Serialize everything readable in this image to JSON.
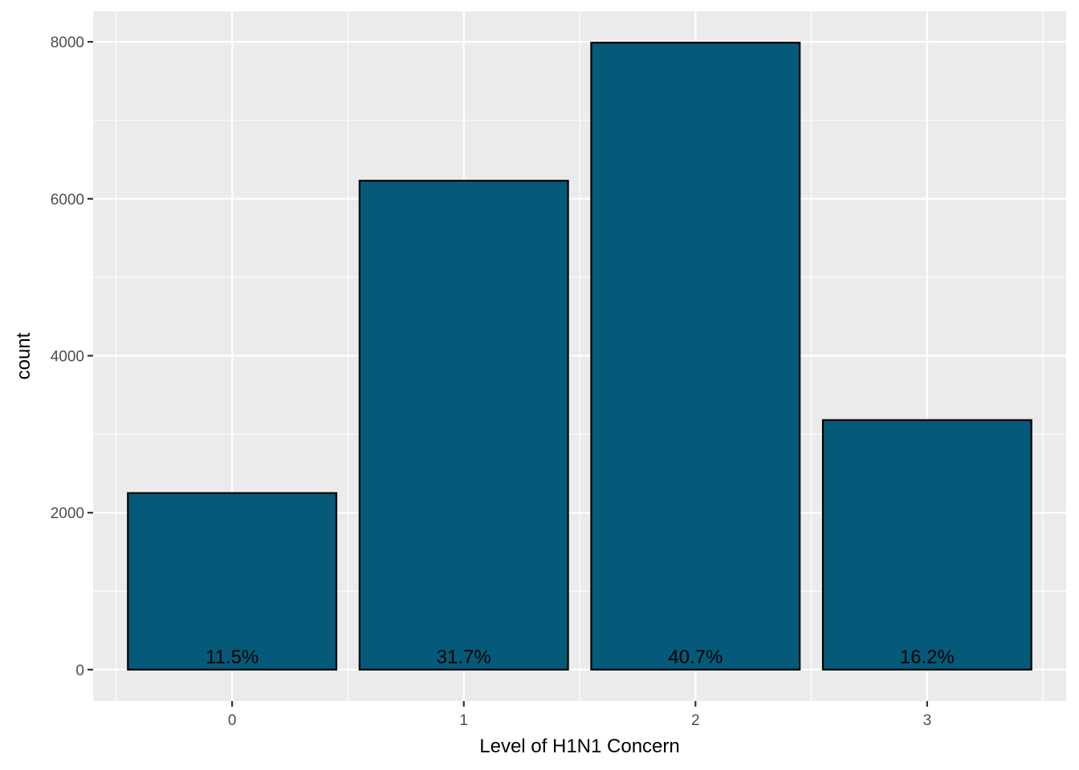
{
  "chart_data": {
    "type": "bar",
    "title": "",
    "xlabel": "Level of H1N1 Concern",
    "ylabel": "count",
    "categories": [
      "0",
      "1",
      "2",
      "3"
    ],
    "values": [
      2250,
      6230,
      7990,
      3180
    ],
    "data_labels": [
      "11.5%",
      "31.7%",
      "40.7%",
      "16.2%"
    ],
    "y_ticks": [
      0,
      2000,
      4000,
      6000,
      8000
    ],
    "y_tick_labels": [
      "0",
      "2000",
      "4000",
      "6000",
      "8000"
    ],
    "ylim": [
      -400,
      8390
    ],
    "grid": true,
    "legend": "none"
  },
  "colors": {
    "panel_background": "#ebebeb",
    "grid_major": "#ffffff",
    "bar_fill": "#045a78",
    "bar_outline": "#000000"
  }
}
